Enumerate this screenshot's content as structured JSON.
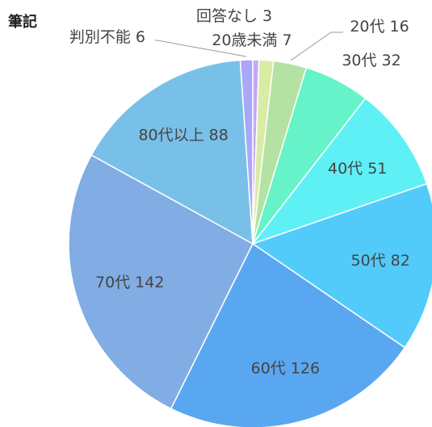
{
  "chart_data": {
    "type": "pie",
    "title": "筆記",
    "categories": [
      "回答なし",
      "20歳未満",
      "20代",
      "30代",
      "40代",
      "50代",
      "60代",
      "70代",
      "80代以上",
      "判別不能"
    ],
    "values": [
      3,
      7,
      16,
      32,
      51,
      82,
      126,
      142,
      88,
      6
    ],
    "colors": [
      "#c6a9f2",
      "#d9eca6",
      "#b4e2a2",
      "#66f3c9",
      "#5ff0f6",
      "#52cbfb",
      "#5aa7f1",
      "#81ade4",
      "#79c0e8",
      "#a9a7f8"
    ]
  }
}
